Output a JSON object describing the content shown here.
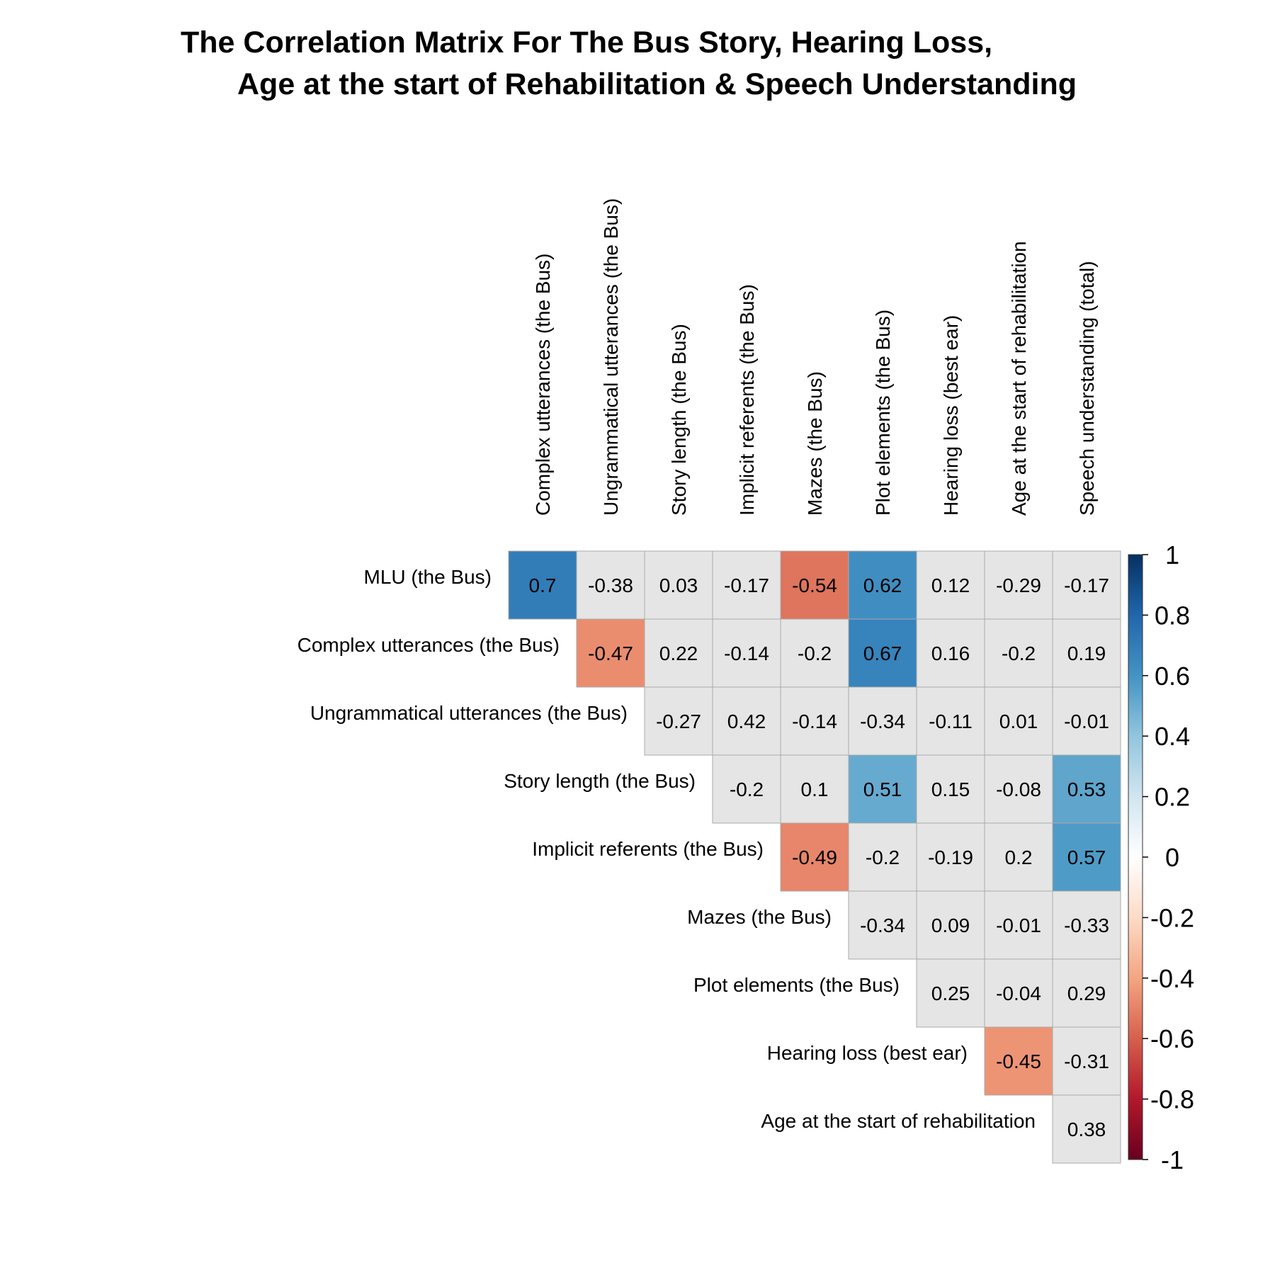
{
  "chart_data": {
    "type": "heatmap",
    "title": [
      "The Correlation Matrix For The Bus Story, Hearing Loss,",
      "Age at the start of Rehabilitation & Speech Understanding"
    ],
    "columns": [
      "Complex utterances (the Bus)",
      "Ungrammatical utterances (the Bus)",
      "Story length (the Bus)",
      "Implicit referents (the Bus)",
      "Mazes (the Bus)",
      "Plot elements (the Bus)",
      "Hearing loss (best ear)",
      "Age at the start of rehabilitation",
      "Speech understanding (total)"
    ],
    "rows": [
      {
        "label": "MLU (the Bus)",
        "start": 0,
        "values": [
          "0.7",
          "-0.38",
          "0.03",
          "-0.17",
          "-0.54",
          "0.62",
          "0.12",
          "-0.29",
          "-0.17"
        ]
      },
      {
        "label": "Complex utterances (the Bus)",
        "start": 1,
        "values": [
          "-0.47",
          "0.22",
          "-0.14",
          "-0.2",
          "0.67",
          "0.16",
          "-0.2",
          "0.19"
        ]
      },
      {
        "label": "Ungrammatical utterances (the Bus)",
        "start": 2,
        "values": [
          "-0.27",
          "0.42",
          "-0.14",
          "-0.34",
          "-0.11",
          "0.01",
          "-0.01"
        ]
      },
      {
        "label": "Story length (the Bus)",
        "start": 3,
        "values": [
          "-0.2",
          "0.1",
          "0.51",
          "0.15",
          "-0.08",
          "0.53"
        ]
      },
      {
        "label": "Implicit referents (the Bus)",
        "start": 4,
        "values": [
          "-0.49",
          "-0.2",
          "-0.19",
          "0.2",
          "0.57"
        ]
      },
      {
        "label": "Mazes (the Bus)",
        "start": 5,
        "values": [
          "-0.34",
          "0.09",
          "-0.01",
          "-0.33"
        ]
      },
      {
        "label": "Plot elements (the Bus)",
        "start": 6,
        "values": [
          "0.25",
          "-0.04",
          "0.29"
        ]
      },
      {
        "label": "Hearing loss (best ear)",
        "start": 7,
        "values": [
          "-0.45",
          "-0.31"
        ]
      },
      {
        "label": "Age at the start of rehabilitation",
        "start": 8,
        "values": [
          "0.38"
        ]
      }
    ],
    "significance_threshold": 0.44,
    "nonsignificant_fill": "#E5E5E5",
    "grid_color": "#AAAAAA",
    "legend": {
      "position": "right",
      "range": [
        -1,
        1
      ],
      "ticks": [
        "1",
        "0.8",
        "0.6",
        "0.4",
        "0.2",
        "0",
        "-0.2",
        "-0.4",
        "-0.6",
        "-0.8",
        "-1"
      ],
      "palette": [
        "#67001F",
        "#B2182B",
        "#D6604D",
        "#F4A582",
        "#FDDBC7",
        "#FFFFFF",
        "#D1E5F0",
        "#92C5DE",
        "#4393C3",
        "#2166AC",
        "#053061"
      ]
    }
  }
}
